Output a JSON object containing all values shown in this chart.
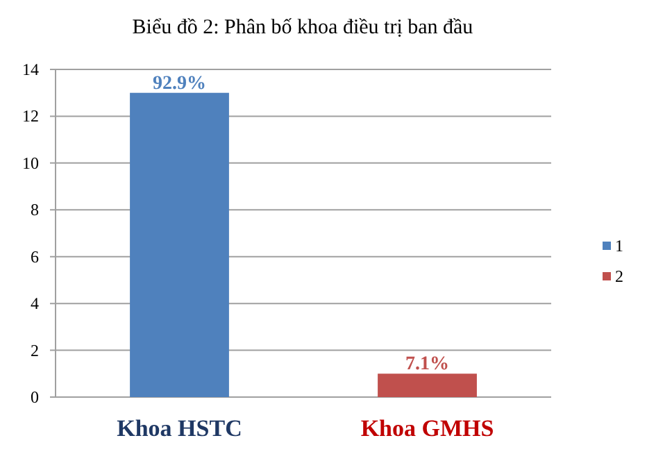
{
  "chart_data": {
    "type": "bar",
    "title": "Biểu đồ 2: Phân bố khoa điều trị ban đầu",
    "categories": [
      "Khoa HSTC",
      "Khoa GMHS"
    ],
    "series": [
      {
        "name": "1",
        "color": "#4f81bd",
        "values": [
          13,
          null
        ]
      },
      {
        "name": "2",
        "color": "#c0504d",
        "values": [
          null,
          1
        ]
      }
    ],
    "annotations": [
      {
        "text": "92.9%",
        "x": "Khoa HSTC",
        "y": 13
      },
      {
        "text": "7.1%",
        "x": "Khoa GMHS",
        "y": 1
      }
    ],
    "ylim": [
      0,
      14
    ],
    "yticks": [
      0,
      2,
      4,
      6,
      8,
      10,
      12,
      14
    ],
    "grid": "y",
    "legend": "right"
  }
}
